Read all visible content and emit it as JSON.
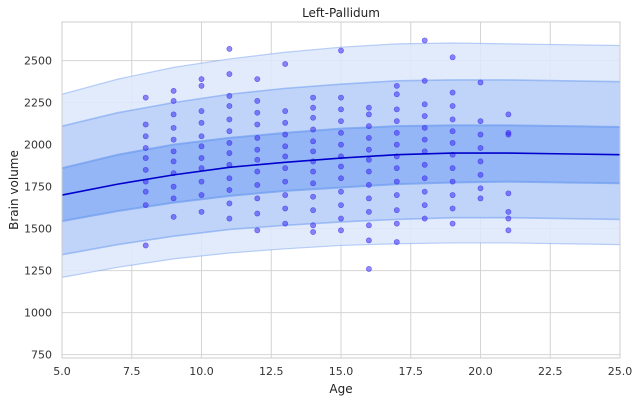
{
  "chart_data": {
    "type": "scatter",
    "title": "Left-Pallidum",
    "xlabel": "Age",
    "ylabel": "Brain volume",
    "xlim": [
      5,
      25
    ],
    "ylim": [
      730,
      2730
    ],
    "x_ticks": [
      5.0,
      7.5,
      10.0,
      12.5,
      15.0,
      17.5,
      20.0,
      22.5,
      25.0
    ],
    "x_tick_labels": [
      "5.0",
      "7.5",
      "10.0",
      "12.5",
      "15.0",
      "17.5",
      "20.0",
      "22.5",
      "25.0"
    ],
    "y_ticks": [
      750,
      1000,
      1250,
      1500,
      1750,
      2000,
      2250,
      2500
    ],
    "y_tick_labels": [
      "750",
      "1000",
      "1250",
      "1500",
      "1750",
      "2000",
      "2250",
      "2500"
    ],
    "grid": true,
    "colors": {
      "median_line": "#0000cc",
      "points": "#3b2cf0",
      "band_inner": "#8fb2f5",
      "band_middle": "#bcd1f8",
      "band_outer": "#dde7fb",
      "band_edge": "#6f9cf0"
    },
    "centile_curves": {
      "x": [
        5,
        7,
        9,
        11,
        13,
        15,
        17,
        19,
        21,
        23,
        25
      ],
      "outer_upper": [
        2300,
        2390,
        2460,
        2510,
        2550,
        2580,
        2600,
        2605,
        2600,
        2595,
        2590
      ],
      "middle_upper": [
        2110,
        2190,
        2250,
        2300,
        2335,
        2360,
        2380,
        2385,
        2385,
        2380,
        2375
      ],
      "inner_upper": [
        1860,
        1940,
        2000,
        2040,
        2070,
        2095,
        2110,
        2115,
        2115,
        2110,
        2105
      ],
      "median": [
        1700,
        1765,
        1820,
        1865,
        1895,
        1920,
        1940,
        1950,
        1950,
        1945,
        1940
      ],
      "inner_lower": [
        1545,
        1605,
        1655,
        1695,
        1725,
        1745,
        1765,
        1775,
        1780,
        1775,
        1770
      ],
      "middle_lower": [
        1345,
        1405,
        1455,
        1495,
        1520,
        1540,
        1555,
        1565,
        1565,
        1560,
        1555
      ],
      "outer_lower": [
        1210,
        1270,
        1320,
        1355,
        1380,
        1400,
        1410,
        1415,
        1415,
        1410,
        1405
      ]
    },
    "points": [
      [
        8,
        1400
      ],
      [
        8,
        1640
      ],
      [
        8,
        1720
      ],
      [
        8,
        1780
      ],
      [
        8,
        1850
      ],
      [
        8,
        1920
      ],
      [
        8,
        1980
      ],
      [
        8,
        2050
      ],
      [
        8,
        2120
      ],
      [
        8,
        2280
      ],
      [
        9,
        1570
      ],
      [
        9,
        1680
      ],
      [
        9,
        1750
      ],
      [
        9,
        1830
      ],
      [
        9,
        1900
      ],
      [
        9,
        1960
      ],
      [
        9,
        2030
      ],
      [
        9,
        2100
      ],
      [
        9,
        2180
      ],
      [
        9,
        2260
      ],
      [
        9,
        2320
      ],
      [
        10,
        1600
      ],
      [
        10,
        1700
      ],
      [
        10,
        1780
      ],
      [
        10,
        1860
      ],
      [
        10,
        1920
      ],
      [
        10,
        1990
      ],
      [
        10,
        2050
      ],
      [
        10,
        2130
      ],
      [
        10,
        2200
      ],
      [
        10,
        2350
      ],
      [
        10,
        2390
      ],
      [
        11,
        1560
      ],
      [
        11,
        1650
      ],
      [
        11,
        1730
      ],
      [
        11,
        1800
      ],
      [
        11,
        1880
      ],
      [
        11,
        1950
      ],
      [
        11,
        2010
      ],
      [
        11,
        2080
      ],
      [
        11,
        2150
      ],
      [
        11,
        2230
      ],
      [
        11,
        2290
      ],
      [
        11,
        2420
      ],
      [
        11,
        2570
      ],
      [
        12,
        1490
      ],
      [
        12,
        1590
      ],
      [
        12,
        1680
      ],
      [
        12,
        1760
      ],
      [
        12,
        1840
      ],
      [
        12,
        1910
      ],
      [
        12,
        1970
      ],
      [
        12,
        2040
      ],
      [
        12,
        2120
      ],
      [
        12,
        2190
      ],
      [
        12,
        2260
      ],
      [
        12,
        2390
      ],
      [
        13,
        1530
      ],
      [
        13,
        1620
      ],
      [
        13,
        1700
      ],
      [
        13,
        1780
      ],
      [
        13,
        1860
      ],
      [
        13,
        1930
      ],
      [
        13,
        1990
      ],
      [
        13,
        2060
      ],
      [
        13,
        2130
      ],
      [
        13,
        2200
      ],
      [
        13,
        2480
      ],
      [
        14,
        1480
      ],
      [
        14,
        1520
      ],
      [
        14,
        1610
      ],
      [
        14,
        1690
      ],
      [
        14,
        1770
      ],
      [
        14,
        1840
      ],
      [
        14,
        1900
      ],
      [
        14,
        1960
      ],
      [
        14,
        2020
      ],
      [
        14,
        2090
      ],
      [
        14,
        2160
      ],
      [
        14,
        2220
      ],
      [
        14,
        2280
      ],
      [
        15,
        1490
      ],
      [
        15,
        1560
      ],
      [
        15,
        1640
      ],
      [
        15,
        1720
      ],
      [
        15,
        1800
      ],
      [
        15,
        1870
      ],
      [
        15,
        1930
      ],
      [
        15,
        2000
      ],
      [
        15,
        2070
      ],
      [
        15,
        2140
      ],
      [
        15,
        2210
      ],
      [
        15,
        2280
      ],
      [
        15,
        2560
      ],
      [
        16,
        1260
      ],
      [
        16,
        1430
      ],
      [
        16,
        1520
      ],
      [
        16,
        1600
      ],
      [
        16,
        1680
      ],
      [
        16,
        1760
      ],
      [
        16,
        1840
      ],
      [
        16,
        1910
      ],
      [
        16,
        1970
      ],
      [
        16,
        2040
      ],
      [
        16,
        2110
      ],
      [
        16,
        2180
      ],
      [
        16,
        2220
      ],
      [
        17,
        1420
      ],
      [
        17,
        1530
      ],
      [
        17,
        1610
      ],
      [
        17,
        1700
      ],
      [
        17,
        1780
      ],
      [
        17,
        1860
      ],
      [
        17,
        1930
      ],
      [
        17,
        2000
      ],
      [
        17,
        2070
      ],
      [
        17,
        2140
      ],
      [
        17,
        2210
      ],
      [
        17,
        2300
      ],
      [
        17,
        2350
      ],
      [
        18,
        1560
      ],
      [
        18,
        1640
      ],
      [
        18,
        1720
      ],
      [
        18,
        1800
      ],
      [
        18,
        1880
      ],
      [
        18,
        1960
      ],
      [
        18,
        2030
      ],
      [
        18,
        2100
      ],
      [
        18,
        2170
      ],
      [
        18,
        2240
      ],
      [
        18,
        2380
      ],
      [
        18,
        2620
      ],
      [
        19,
        1530
      ],
      [
        19,
        1620
      ],
      [
        19,
        1700
      ],
      [
        19,
        1780
      ],
      [
        19,
        1860
      ],
      [
        19,
        1940
      ],
      [
        19,
        2010
      ],
      [
        19,
        2080
      ],
      [
        19,
        2150
      ],
      [
        19,
        2230
      ],
      [
        19,
        2310
      ],
      [
        19,
        2520
      ],
      [
        20,
        1680
      ],
      [
        20,
        1740
      ],
      [
        20,
        1820
      ],
      [
        20,
        1900
      ],
      [
        20,
        1980
      ],
      [
        20,
        2060
      ],
      [
        20,
        2140
      ],
      [
        20,
        2370
      ],
      [
        21,
        1490
      ],
      [
        21,
        1560
      ],
      [
        21,
        1600
      ],
      [
        21,
        1710
      ],
      [
        21,
        2060
      ],
      [
        21,
        2070
      ],
      [
        21,
        2180
      ]
    ]
  }
}
